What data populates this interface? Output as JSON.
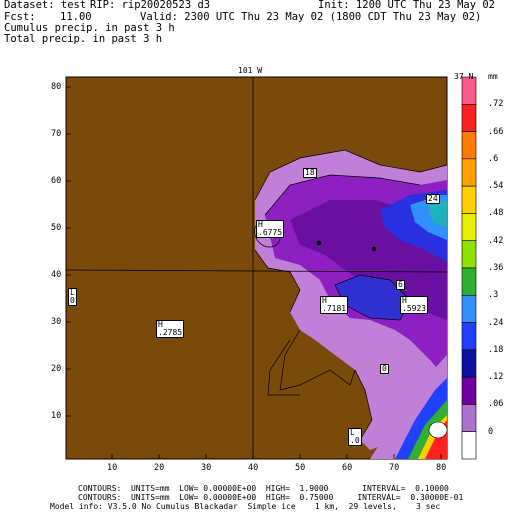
{
  "header": {
    "dataset": "Dataset: test",
    "rip": "RIP: rip20020523 d3",
    "init": "Init: 1200 UTC Thu 23 May 02",
    "fcst": "Fcst:",
    "fcst_value": "11.00",
    "valid": "Valid: 2300 UTC Thu 23 May 02 (1800 CDT Thu 23 May 02)",
    "field1": "Cumulus precip. in past 3 h",
    "field2": "Total precip. in past 3 h"
  },
  "plot": {
    "top_label": "101 W",
    "right_top_label": "37 N",
    "x_ticks": [
      "10",
      "20",
      "30",
      "40",
      "50",
      "60",
      "70",
      "80"
    ],
    "y_ticks": [
      "80",
      "70",
      "60",
      "50",
      "40",
      "30",
      "20",
      "10"
    ],
    "land_color": "#7a4a0a"
  },
  "colorbar": {
    "unit": "mm",
    "labels": [
      ".72",
      ".66",
      ".6",
      ".54",
      ".48",
      ".42",
      ".36",
      ".3",
      ".24",
      ".18",
      ".12",
      ".06",
      "0"
    ],
    "colors": [
      "#ff5a8c",
      "#ff2020",
      "#ff7a00",
      "#ffa000",
      "#ffd000",
      "#e6f000",
      "#90e000",
      "#30b030",
      "#3090ff",
      "#2040ff",
      "#1010a0",
      "#7000a0",
      "#b070d0",
      "#ffffff"
    ]
  },
  "labels": {
    "h1": "H\n.6775",
    "h2": "H\n.7181",
    "h3": "H\n.5923",
    "h4": "H\n.2785",
    "l1": "L\n0",
    "l2": "L\n.0",
    "c18": "18",
    "c24": "24",
    "c6": "6",
    "c0": "0",
    "c6b": "6"
  },
  "footer": {
    "line1": "CONTOURS:  UNITS=mm  LOW= 0.00000E+00  HIGH=  1.9000       INTERVAL=  0.10000",
    "line2": "CONTOURS:  UNITS=mm  LOW= 0.00000E+00  HIGH=  0.75000     INTERVAL=  0.30000E-01",
    "line3": "Model info: V3.5.0 No Cumulus Blackadar  Simple ice    1 km,  29 levels,    3 sec"
  }
}
